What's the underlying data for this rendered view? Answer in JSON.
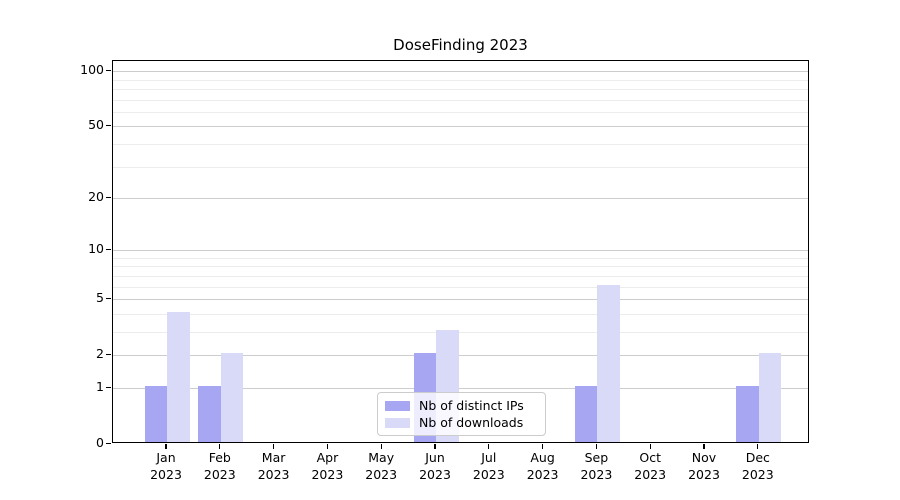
{
  "title": "DoseFinding 2023",
  "chart_data": {
    "type": "bar",
    "title": "DoseFinding 2023",
    "xlabel": "",
    "ylabel": "",
    "scale": "log10(1+value)",
    "ylim": [
      0,
      113.4
    ],
    "grid": true,
    "legend_position": "bottom-center",
    "year": "2023",
    "categories": [
      "Jan",
      "Feb",
      "Mar",
      "Apr",
      "May",
      "Jun",
      "Jul",
      "Aug",
      "Sep",
      "Oct",
      "Nov",
      "Dec"
    ],
    "series": [
      {
        "name": "Nb of distinct IPs",
        "color": "#a6a6f2",
        "values": [
          1,
          1,
          0,
          0,
          0,
          2,
          0,
          0,
          1,
          0,
          0,
          1
        ]
      },
      {
        "name": "Nb of downloads",
        "color": "#d9d9f8",
        "values": [
          4,
          2,
          0,
          0,
          0,
          3,
          0,
          0,
          6,
          0,
          0,
          2
        ]
      }
    ],
    "y_ticks": [
      0,
      1,
      2,
      5,
      10,
      20,
      50,
      100
    ],
    "minor_gridlines": [
      3,
      4,
      6,
      7,
      8,
      9,
      30,
      40,
      60,
      70,
      80,
      90
    ],
    "colors": {
      "axis": "#000000",
      "major_grid": "#cdcdcd",
      "minor_grid": "#ececec",
      "background": "#ffffff"
    }
  }
}
